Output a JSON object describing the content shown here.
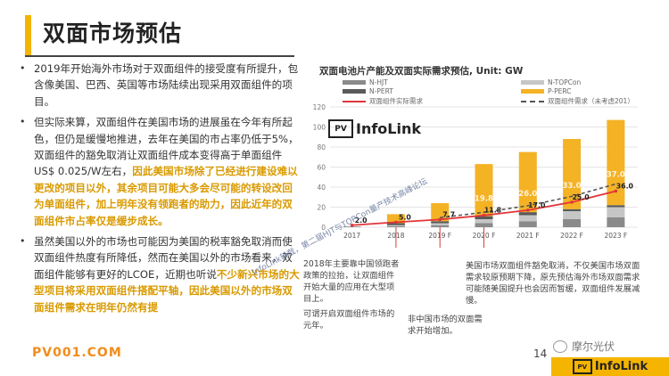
{
  "page": {
    "title": "双面市场预估",
    "page_number": "14",
    "site": "PV001.COM",
    "wechat_name": "摩尔光伏",
    "brand": {
      "badge": "PV",
      "name": "InfoLink"
    }
  },
  "bullets": [
    {
      "parts": [
        {
          "t": "2019年开始海外市场对于双面组件的接受度有所提升，包含像美国、巴西、英国等市场陆续出现采用双面组件的项目。",
          "hl": false
        }
      ]
    },
    {
      "parts": [
        {
          "t": "但实际来算，双面组件在美国市场的进展虽在今年有所起色，但仍是缓慢地推进，去年在美国的市占率仍低于5%，双面组件的豁免取消让双面组件成本变得高于单面组件US$ 0.025/W左右，",
          "hl": false
        },
        {
          "t": "因此美国市场除了已经进行建设难以更改的项目以外，其余项目可能大多会尽可能的转设改回为单面组件，加上明年没有领跑者的助力，因此近年的双面组件市占率仅是缓步成长。",
          "hl": true
        }
      ]
    },
    {
      "parts": [
        {
          "t": "虽然美国以外的市场也可能因为美国的税率豁免取消而使双面组件热度有所降低，然而在美国以外的市场看来，双面组件能够有更好的LCOE，近期也听说",
          "hl": false
        },
        {
          "t": "不少新兴市场的大型项目将采用双面组件搭配平轴，因此美国以外的市场双面组件需求在明年仍然有提",
          "hl": true
        }
      ]
    }
  ],
  "chart_data": {
    "type": "bar",
    "title": "双面电池片产能及双面实际需求预估, Unit: GW",
    "categories": [
      "2017",
      "2018",
      "2019 F",
      "2020 F",
      "2021 F",
      "2022 F",
      "2023 F"
    ],
    "ylim": [
      0,
      120
    ],
    "yticks": [
      0,
      20,
      40,
      60,
      80,
      100,
      120
    ],
    "series": [
      {
        "name": "N-HJT",
        "color": "#8a8a8a",
        "values": [
          0,
          1,
          2,
          4,
          6,
          8,
          10
        ]
      },
      {
        "name": "N-TOPCon",
        "color": "#c6c6c6",
        "values": [
          0,
          1,
          2,
          4,
          6,
          8,
          10
        ]
      },
      {
        "name": "N-PERT",
        "color": "#5a5a5a",
        "values": [
          0.5,
          2,
          2,
          3,
          3,
          2,
          2
        ]
      },
      {
        "name": "P-PERC",
        "color": "#f4b225",
        "values": [
          0,
          9,
          18,
          52,
          60,
          70,
          85
        ]
      }
    ],
    "demand": {
      "name": "双面组件实际需求",
      "color": "#e0353a",
      "values": [
        2.0,
        5.0,
        7.7,
        11.8,
        17.0,
        25.0,
        36.0
      ],
      "labels": [
        "2.0",
        "5.0",
        "7.7",
        "11.8",
        "17.0",
        "25.0",
        "36.0"
      ]
    },
    "forecast": {
      "name": "双面组件需求（未考虑201）",
      "color": "#555555"
    },
    "faint_labels": [
      {
        "i": 3,
        "label": "19.8"
      },
      {
        "i": 4,
        "label": "26.0"
      },
      {
        "i": 5,
        "label": "33.0"
      },
      {
        "i": 6,
        "label": "37.0"
      }
    ]
  },
  "callouts": {
    "c1": "2018年主要靠中国领跑者政策的拉抬，让双面组件开始大量的应用在大型项目上。",
    "c1b": "可谓开启双面组件市场的元年。",
    "c2": "非中国市场的双面需求开始增加。",
    "c3": "美国市场双面组件豁免取消，不仅美国市场双面需求较原预期下降，原先预估海外市场双面需求可能随美国提升也会因而暂缓，双面组件发展减慢。"
  },
  "watermark": "InfoLink转载，第二届HJT与TOPCon量产技术高峰论坛"
}
